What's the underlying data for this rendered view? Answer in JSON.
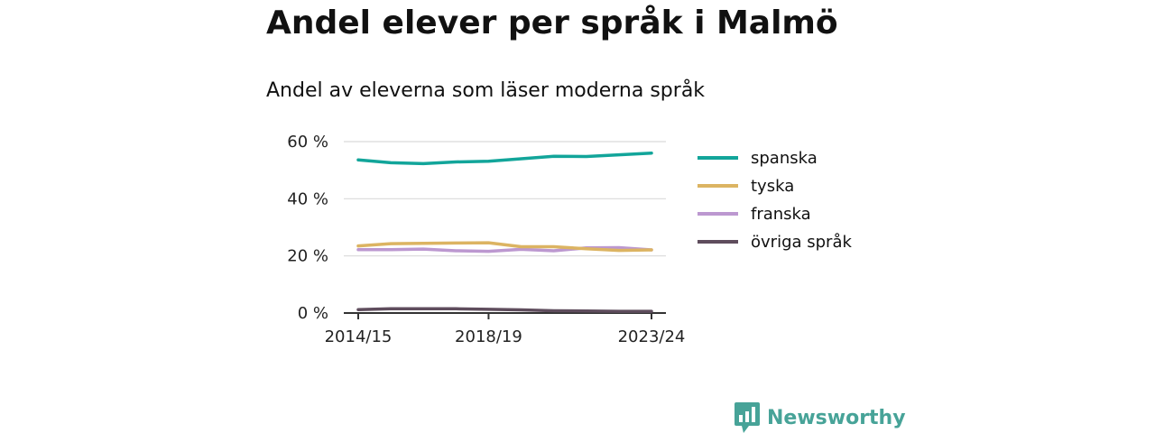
{
  "title": "Andel elever per språk i Malmö",
  "subtitle": "Andel av eleverna som läser moderna språk",
  "brand": {
    "name": "Newsworthy",
    "icon": "bar-chart-speech-bubble-icon",
    "color": "#47a398"
  },
  "chart_data": {
    "type": "line",
    "title": "Andel elever per språk i Malmö",
    "subtitle": "Andel av eleverna som läser moderna språk",
    "x": [
      "2014/15",
      "2015/16",
      "2016/17",
      "2017/18",
      "2018/19",
      "2019/20",
      "2020/21",
      "2021/22",
      "2022/23",
      "2023/24"
    ],
    "x_tick_labels": [
      "2014/15",
      "2018/19",
      "2023/24"
    ],
    "y_ticks": [
      0,
      20,
      40,
      60
    ],
    "y_tick_labels": [
      "0 %",
      "20 %",
      "40 %",
      "60 %"
    ],
    "ylim": [
      0,
      60
    ],
    "y_unit": "%",
    "grid": true,
    "legend_position": "right",
    "series": [
      {
        "name": "spanska",
        "color": "#12a59a",
        "values": [
          53.6,
          52.6,
          52.3,
          52.9,
          53.1,
          54.0,
          54.9,
          54.8,
          55.4,
          56.0
        ]
      },
      {
        "name": "tyska",
        "color": "#dcb462",
        "values": [
          23.5,
          24.3,
          24.4,
          24.5,
          24.6,
          23.2,
          23.2,
          22.5,
          21.9,
          22.1
        ]
      },
      {
        "name": "franska",
        "color": "#bc98d0",
        "values": [
          22.2,
          22.2,
          22.4,
          21.8,
          21.6,
          22.3,
          21.8,
          22.8,
          22.9,
          22.1
        ]
      },
      {
        "name": "övriga språk",
        "color": "#5f4d5d",
        "values": [
          1.2,
          1.5,
          1.5,
          1.5,
          1.3,
          1.1,
          0.8,
          0.7,
          0.6,
          0.6
        ]
      }
    ]
  }
}
